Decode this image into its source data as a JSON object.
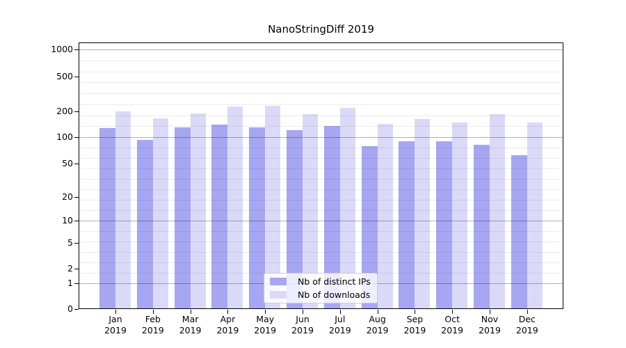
{
  "chart_data": {
    "type": "bar",
    "title": "NanoStringDiff 2019",
    "scale": "log-like",
    "grid": true,
    "legend_position": "bottom-center",
    "categories": [
      "Jan",
      "Feb",
      "Mar",
      "Apr",
      "May",
      "Jun",
      "Jul",
      "Aug",
      "Sep",
      "Oct",
      "Nov",
      "Dec"
    ],
    "year_label": "2019",
    "y_ticks": [
      0,
      1,
      2,
      5,
      10,
      20,
      50,
      100,
      200,
      500,
      1000
    ],
    "y_tick_labels": [
      "0",
      "1",
      "2",
      "5",
      "10",
      "20",
      "50",
      "100",
      "200",
      "500",
      "1000"
    ],
    "ylim": [
      0,
      1000
    ],
    "series": [
      {
        "name": "Nb of distinct IPs",
        "color": "#a6a6f2",
        "values": [
          128,
          93,
          129,
          140,
          130,
          120,
          136,
          79,
          90,
          90,
          82,
          62
        ]
      },
      {
        "name": "Nb of downloads",
        "color": "#dadaf8",
        "values": [
          200,
          167,
          189,
          227,
          231,
          186,
          218,
          144,
          163,
          147,
          185,
          147
        ]
      }
    ],
    "decade_gridlines": [
      1,
      10,
      100,
      1000
    ]
  }
}
